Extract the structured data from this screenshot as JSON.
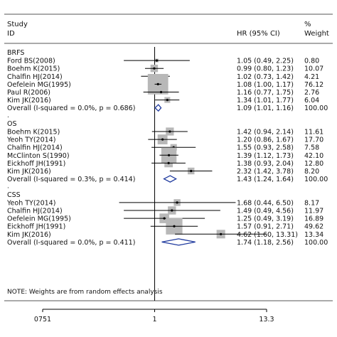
{
  "header": {
    "study": "Study",
    "id": "ID",
    "hr": "HR (95% CI)",
    "pct": "%",
    "weight": "Weight"
  },
  "note": "NOTE: Weights are from random effects analysis",
  "chart_data": {
    "type": "forest",
    "x_scale": "log",
    "xlim": [
      0.0751,
      13.3
    ],
    "xticks": [
      "0751",
      "1",
      "13.3"
    ],
    "null_line": 1,
    "groups": [
      {
        "label": "BRFS",
        "studies": [
          {
            "study": "Ford BS(2008)",
            "hr": 1.05,
            "lo": 0.49,
            "hi": 2.25,
            "text": "1.05 (0.49, 2.25)",
            "weight": "0.80"
          },
          {
            "study": "Boehm K(2015)",
            "hr": 0.99,
            "lo": 0.8,
            "hi": 1.23,
            "text": "0.99 (0.80, 1.23)",
            "weight": "10.07"
          },
          {
            "study": "Chalfin HJ(2014)",
            "hr": 1.02,
            "lo": 0.73,
            "hi": 1.42,
            "text": "1.02 (0.73, 1.42)",
            "weight": "4.21"
          },
          {
            "study": "Oefelein MG(1995)",
            "hr": 1.08,
            "lo": 1.0,
            "hi": 1.17,
            "text": "1.08 (1.00, 1.17)",
            "weight": "76.12"
          },
          {
            "study": "Paul R(2006)",
            "hr": 1.16,
            "lo": 0.77,
            "hi": 1.75,
            "text": "1.16 (0.77, 1.75)",
            "weight": "2.76"
          },
          {
            "study": "Kim JK(2016)",
            "hr": 1.34,
            "lo": 1.01,
            "hi": 1.77,
            "text": "1.34 (1.01, 1.77)",
            "weight": "6.04"
          }
        ],
        "overall": {
          "label": "Overall  (I-squared = 0.0%, p = 0.686)",
          "hr": 1.09,
          "lo": 1.01,
          "hi": 1.16,
          "text": "1.09 (1.01, 1.16)",
          "weight": "100.00"
        }
      },
      {
        "label": "OS",
        "studies": [
          {
            "study": "Boehm K(2015)",
            "hr": 1.42,
            "lo": 0.94,
            "hi": 2.14,
            "text": "1.42 (0.94, 2.14)",
            "weight": "11.61"
          },
          {
            "study": "Yeoh TY(2014)",
            "hr": 1.2,
            "lo": 0.86,
            "hi": 1.67,
            "text": "1.20 (0.86, 1.67)",
            "weight": "17.70"
          },
          {
            "study": "Chalfin HJ(2014)",
            "hr": 1.55,
            "lo": 0.93,
            "hi": 2.58,
            "text": "1.55 (0.93, 2.58)",
            "weight": "7.58"
          },
          {
            "study": "McClinton S(1990)",
            "hr": 1.39,
            "lo": 1.12,
            "hi": 1.73,
            "text": "1.39 (1.12, 1.73)",
            "weight": "42.10"
          },
          {
            "study": "Eickhoff JH(1991)",
            "hr": 1.38,
            "lo": 0.93,
            "hi": 2.04,
            "text": "1.38 (0.93, 2.04)",
            "weight": "12.80"
          },
          {
            "study": "Kim JK(2016)",
            "hr": 2.32,
            "lo": 1.42,
            "hi": 3.78,
            "text": "2.32 (1.42, 3.78)",
            "weight": "8.20"
          }
        ],
        "overall": {
          "label": "Overall  (I-squared = 0.3%, p = 0.414)",
          "hr": 1.43,
          "lo": 1.24,
          "hi": 1.64,
          "text": "1.43 (1.24, 1.64)",
          "weight": "100.00"
        }
      },
      {
        "label": "CSS",
        "studies": [
          {
            "study": "Yeoh TY(2014)",
            "hr": 1.68,
            "lo": 0.44,
            "hi": 6.5,
            "text": "1.68 (0.44, 6.50)",
            "weight": "8.17"
          },
          {
            "study": "Chalfin HJ(2014)",
            "hr": 1.49,
            "lo": 0.49,
            "hi": 4.56,
            "text": "1.49 (0.49, 4.56)",
            "weight": "11.97"
          },
          {
            "study": "Oefelein MG(1995)",
            "hr": 1.25,
            "lo": 0.49,
            "hi": 3.19,
            "text": "1.25 (0.49, 3.19)",
            "weight": "16.89"
          },
          {
            "study": "Eickhoff JH(1991)",
            "hr": 1.57,
            "lo": 0.91,
            "hi": 2.71,
            "text": "1.57 (0.91, 2.71)",
            "weight": "49.62"
          },
          {
            "study": "Kim JK(2016)",
            "hr": 4.62,
            "lo": 1.6,
            "hi": 13.31,
            "text": "4.62 (1.60, 13.31)",
            "weight": "13.34"
          }
        ],
        "overall": {
          "label": "Overall  (I-squared = 0.0%, p = 0.411)",
          "hr": 1.74,
          "lo": 1.18,
          "hi": 2.56,
          "text": "1.74 (1.18, 2.56)",
          "weight": "100.00"
        }
      }
    ]
  },
  "colors": {
    "box": "#b8b8b8",
    "diamond": "#1f3a9e",
    "line": "#000000"
  }
}
